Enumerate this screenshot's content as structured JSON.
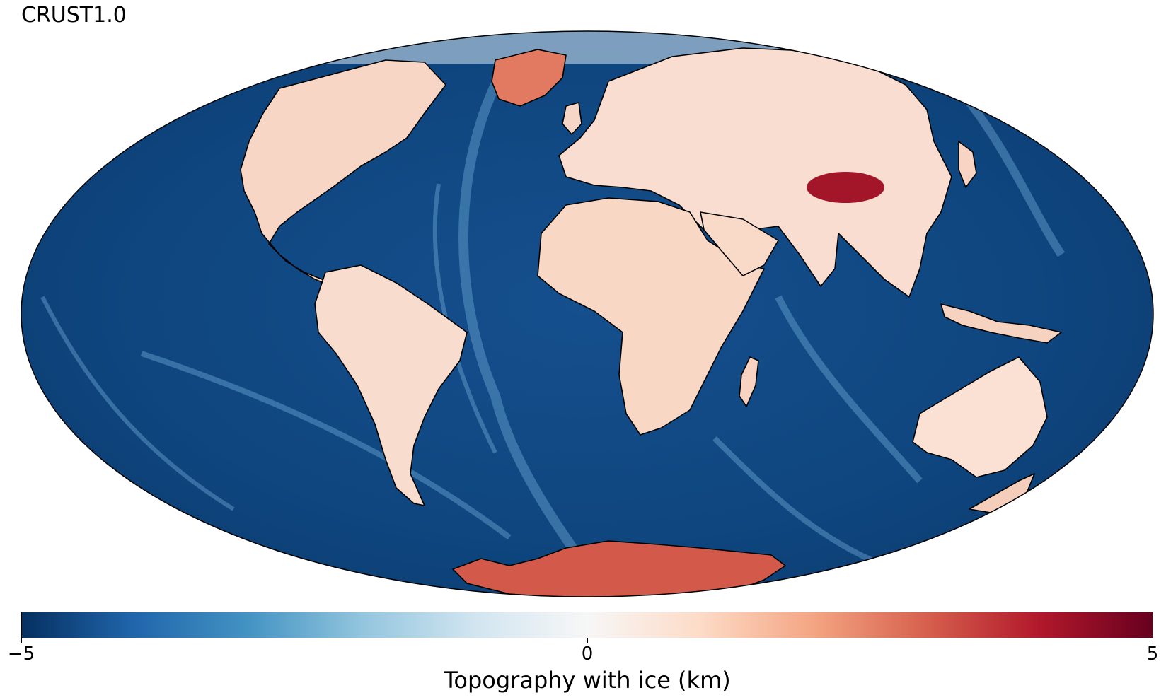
{
  "title": "CRUST1.0",
  "colorbar": {
    "label": "Topography with ice (km)",
    "min": -5,
    "max": 5,
    "ticks": [
      "−5",
      "0",
      "5"
    ],
    "colormap": "RdBu_r",
    "stops": [
      "#053061",
      "#2166ac",
      "#4393c3",
      "#92c5de",
      "#d1e5f0",
      "#f7f7f7",
      "#fddbc7",
      "#f4a582",
      "#d6604d",
      "#b2182b",
      "#67001f"
    ]
  },
  "map": {
    "projection": "Mollweide",
    "ocean_color": "#0b3d73",
    "coastline_color": "#000000"
  }
}
